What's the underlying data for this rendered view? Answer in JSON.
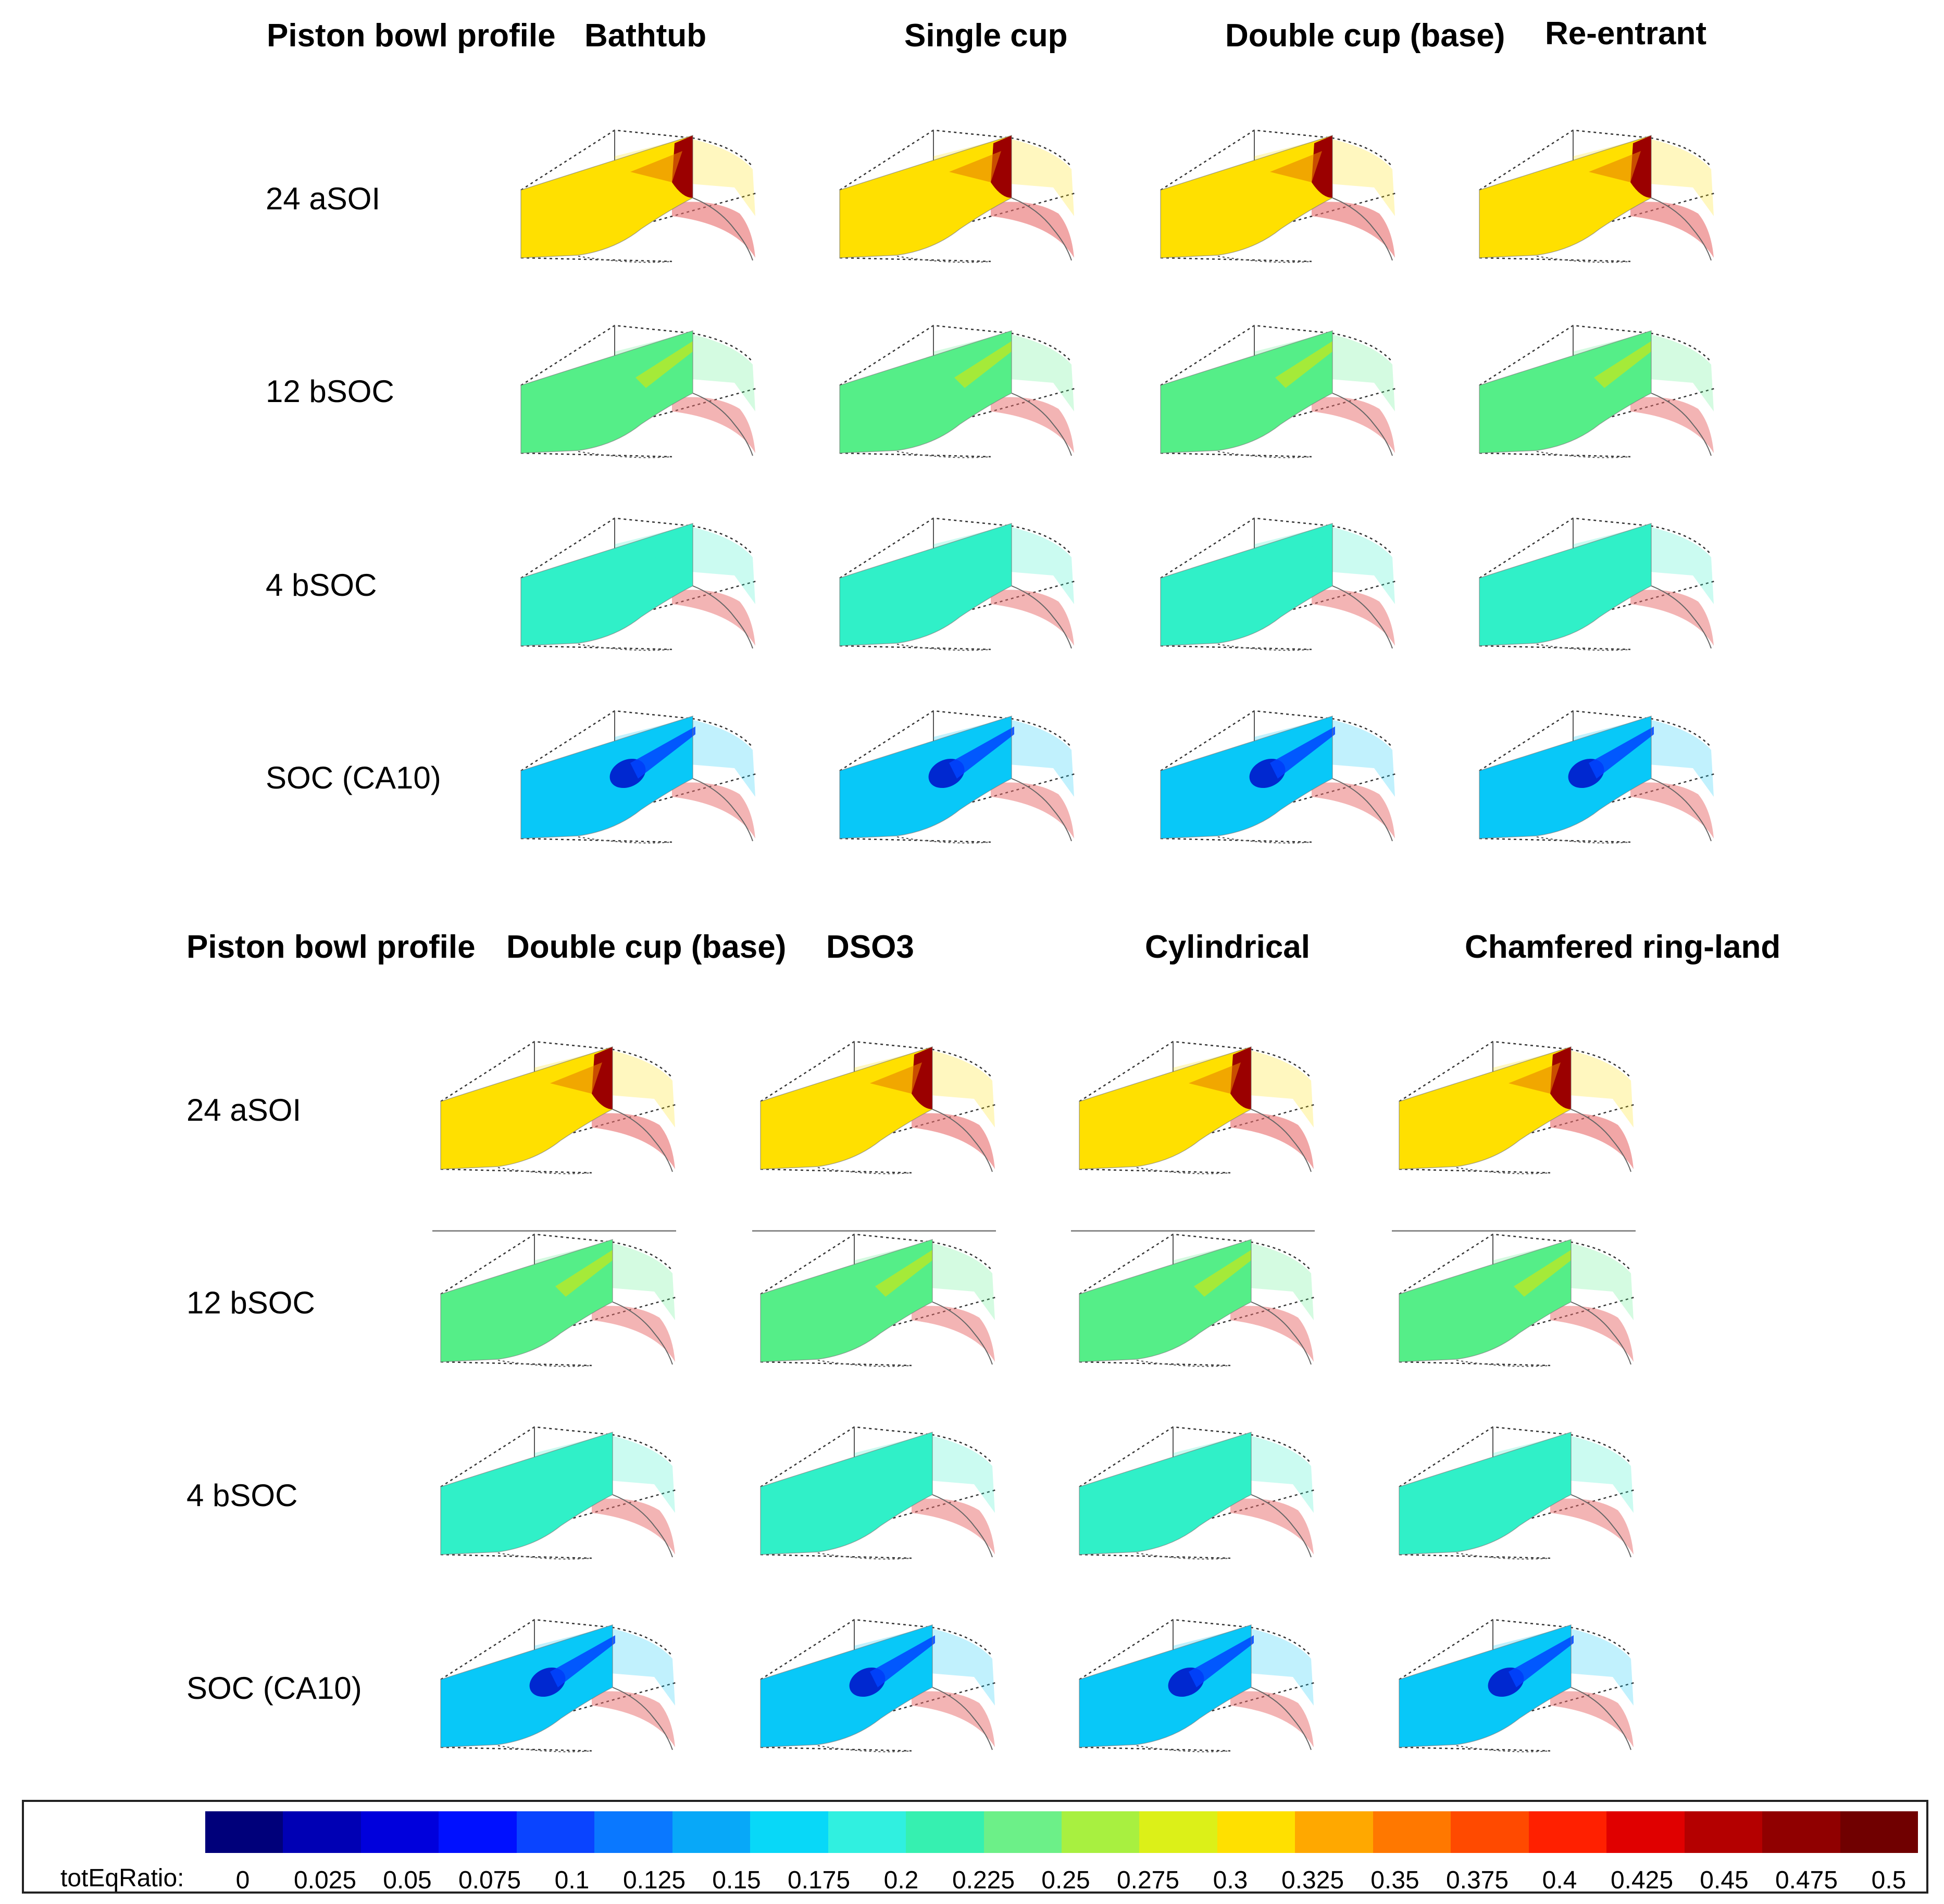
{
  "panels": [
    {
      "header_label": "Piston bowl profile",
      "profiles": [
        "Bathtub",
        "Single cup",
        "Double cup (base)",
        "Re-entrant"
      ],
      "rows": [
        "24 aSOI",
        "12 bSOC",
        "4 bSOC",
        "SOC (CA10)"
      ],
      "row_colors": [
        "#ffe000",
        "#55ee88",
        "#30f0c8",
        "#08c8f8"
      ],
      "core_colors": [
        "#9b0000",
        "#c8e818",
        "#30f0c8",
        "#0028d0"
      ]
    },
    {
      "header_label": "Piston bowl profile",
      "profiles": [
        "Double cup (base)",
        "DSO3",
        "Cylindrical",
        "Chamfered ring-land"
      ],
      "rows": [
        "24 aSOI",
        "12 bSOC",
        "4 bSOC",
        "SOC (CA10)"
      ],
      "row_colors": [
        "#ffe000",
        "#55ee88",
        "#30f0c8",
        "#08c8f8"
      ],
      "core_colors": [
        "#9b0000",
        "#c8e818",
        "#30f0c8",
        "#0028d0"
      ]
    }
  ],
  "legend": {
    "variable_label": "totEqRatio:",
    "min": 0,
    "max": 0.5,
    "tick_labels": [
      "0",
      "0.025",
      "0.05",
      "0.075",
      "0.1",
      "0.125",
      "0.15",
      "0.175",
      "0.2",
      "0.225",
      "0.25",
      "0.275",
      "0.3",
      "0.325",
      "0.35",
      "0.375",
      "0.4",
      "0.425",
      "0.45",
      "0.475",
      "0.5"
    ],
    "colors": [
      "#00007a",
      "#0000b4",
      "#0000dc",
      "#0010ff",
      "#0a44ff",
      "#0a78ff",
      "#08a8f8",
      "#08d8f8",
      "#30f0e0",
      "#36f0b0",
      "#6cf088",
      "#a8f040",
      "#dcf018",
      "#ffe000",
      "#ffa800",
      "#ff7800",
      "#ff4a00",
      "#ff2000",
      "#e00000",
      "#b40000",
      "#900000",
      "#700000"
    ]
  }
}
